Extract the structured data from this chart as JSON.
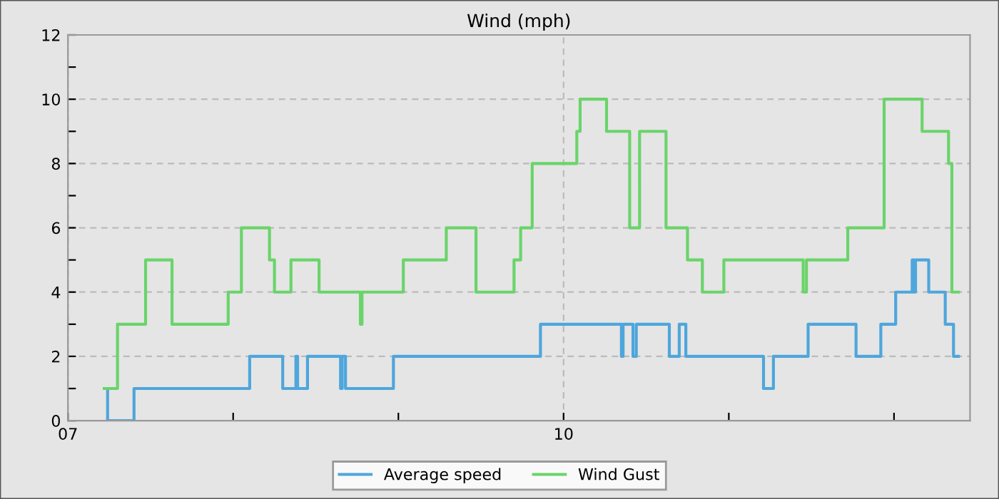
{
  "chart_data": {
    "type": "step",
    "title": "Wind (mph)",
    "xlim": [
      7,
      12.46
    ],
    "xticks": [
      {
        "value": 7,
        "label": "07"
      },
      {
        "value": 8,
        "label": null
      },
      {
        "value": 9,
        "label": null
      },
      {
        "value": 10,
        "label": "10"
      },
      {
        "value": 11,
        "label": null
      },
      {
        "value": 12,
        "label": null
      }
    ],
    "ylim": [
      0,
      12
    ],
    "yticks": [
      0,
      {
        "value": 1,
        "label": null
      },
      2,
      {
        "value": 3,
        "label": null
      },
      4,
      {
        "value": 5,
        "label": null
      },
      6,
      {
        "value": 7,
        "label": null
      },
      8,
      {
        "value": 9,
        "label": null
      },
      10,
      {
        "value": 11,
        "label": null
      },
      12
    ],
    "grid": true,
    "legend": "bottom",
    "series": [
      {
        "name": "Average speed",
        "color": "#4ea6dc",
        "x": [
          7.22,
          7.24,
          7.4,
          8.1,
          8.3,
          8.38,
          8.39,
          8.45,
          8.65,
          8.66,
          8.68,
          8.97,
          9.86,
          10.35,
          10.36,
          10.42,
          10.44,
          10.64,
          10.7,
          10.74,
          11.21,
          11.27,
          11.48,
          11.77,
          11.92,
          12.01,
          12.11,
          12.12,
          12.13,
          12.21,
          12.31,
          12.36,
          12.39
        ],
        "values": [
          1,
          0,
          1,
          2,
          1,
          2,
          1,
          2,
          1,
          2,
          1,
          2,
          3,
          2,
          3,
          2,
          3,
          2,
          3,
          2,
          1,
          2,
          3,
          2,
          3,
          4,
          5,
          4,
          5,
          4,
          3,
          2,
          2
        ]
      },
      {
        "name": "Wind Gust",
        "color": "#6ad46a",
        "x": [
          7.22,
          7.3,
          7.47,
          7.63,
          7.97,
          8.05,
          8.22,
          8.25,
          8.35,
          8.52,
          8.77,
          8.78,
          9.03,
          9.29,
          9.47,
          9.7,
          9.74,
          9.81,
          10.08,
          10.1,
          10.26,
          10.4,
          10.46,
          10.62,
          10.75,
          10.84,
          10.97,
          11.45,
          11.47,
          11.72,
          11.94,
          12.17,
          12.33,
          12.35,
          12.39
        ],
        "values": [
          1,
          3,
          5,
          3,
          4,
          6,
          5,
          4,
          5,
          4,
          3,
          4,
          5,
          6,
          4,
          5,
          6,
          8,
          9,
          10,
          9,
          6,
          9,
          6,
          5,
          4,
          5,
          4,
          5,
          6,
          10,
          9,
          8,
          4,
          4
        ]
      }
    ]
  }
}
